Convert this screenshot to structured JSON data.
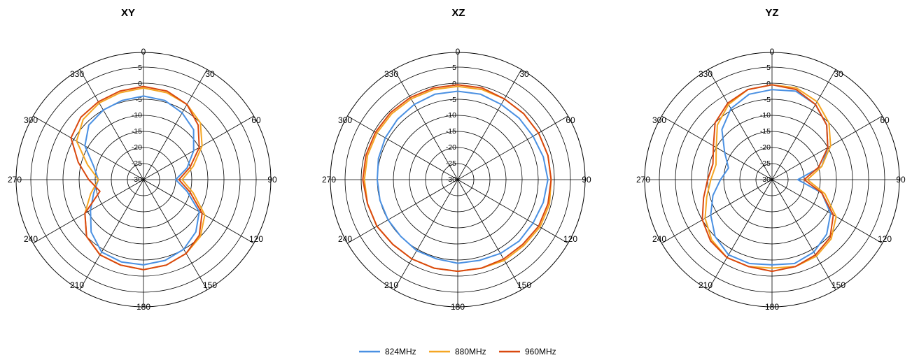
{
  "colors": {
    "s824": "#4a90e2",
    "s880": "#f5a623",
    "s960": "#d9480f",
    "grid": "#000000"
  },
  "chart_data": [
    {
      "type": "polar-line",
      "title": "XY",
      "angle_ticks": [
        "0",
        "30",
        "60",
        "90",
        "120",
        "150",
        "180",
        "210",
        "240",
        "270",
        "300",
        "330"
      ],
      "radial_ticks": [
        "5",
        "0",
        "-5",
        "-10",
        "-15",
        "-20",
        "-25",
        "-30"
      ],
      "rlim": [
        -30,
        5
      ],
      "theta_deg": [
        0,
        15,
        30,
        45,
        60,
        75,
        90,
        105,
        120,
        135,
        150,
        165,
        180,
        195,
        210,
        225,
        240,
        255,
        270,
        285,
        300,
        315,
        330,
        345
      ],
      "series": [
        {
          "name": "824MHz",
          "values": [
            -4,
            -4.5,
            -6,
            -8,
            -12,
            -16,
            -20,
            -16,
            -10,
            -7,
            -5,
            -4,
            -3.5,
            -3.5,
            -4,
            -7,
            -11,
            -14,
            -16,
            -14,
            -9,
            -6,
            -5,
            -4.5
          ]
        },
        {
          "name": "880MHz",
          "values": [
            -1.5,
            -2,
            -3,
            -5,
            -9,
            -14,
            -18,
            -14,
            -8,
            -5,
            -3.5,
            -2.5,
            -2,
            -2.5,
            -3,
            -5,
            -9,
            -13,
            -16,
            -12,
            -6,
            -3.5,
            -2.5,
            -2
          ]
        },
        {
          "name": "960MHz",
          "values": [
            -1,
            -1.5,
            -3,
            -6,
            -10,
            -15,
            -19,
            -15,
            -9,
            -5.5,
            -3.5,
            -2.5,
            -2,
            -2.5,
            -3,
            -5,
            -9,
            -16,
            -13,
            -9,
            -4,
            -2.5,
            -2,
            -1.5
          ]
        }
      ]
    },
    {
      "type": "polar-line",
      "title": "XZ",
      "angle_ticks": [
        "0",
        "30",
        "60",
        "90",
        "120",
        "150",
        "180",
        "210",
        "240",
        "270",
        "300",
        "330"
      ],
      "radial_ticks": [
        "5",
        "0",
        "-5",
        "-10",
        "-15",
        "-20",
        "-25",
        "-30"
      ],
      "rlim": [
        -30,
        5
      ],
      "theta_deg": [
        0,
        15,
        30,
        45,
        60,
        75,
        90,
        105,
        120,
        135,
        150,
        165,
        180,
        195,
        210,
        225,
        240,
        255,
        270,
        285,
        300,
        315,
        330,
        345
      ],
      "series": [
        {
          "name": "824MHz",
          "values": [
            -2.5,
            -2.5,
            -3,
            -3,
            -3,
            -2.5,
            -2,
            -2.5,
            -3,
            -3,
            -3.5,
            -4,
            -4,
            -4.5,
            -4.5,
            -5,
            -5,
            -5,
            -5,
            -4.5,
            -4,
            -3.5,
            -3,
            -2.5
          ]
        },
        {
          "name": "880MHz",
          "values": [
            -1,
            -1,
            -1,
            -1,
            -1,
            -1,
            -1,
            -0.5,
            -0.5,
            -1,
            -1,
            -1.5,
            -1.5,
            -1.5,
            -1.5,
            -1.5,
            -1,
            -1,
            -1,
            -1,
            -1,
            -1,
            -1,
            -1
          ]
        },
        {
          "name": "960MHz",
          "values": [
            -0.5,
            -0.5,
            -1,
            -1,
            -1,
            -1,
            -1,
            -1,
            -1,
            -1.5,
            -1.5,
            -1.5,
            -1.5,
            -1.5,
            -1.5,
            -1.5,
            -1,
            -1,
            -0.5,
            -0.5,
            -0.5,
            -0.5,
            -0.5,
            -0.5
          ]
        }
      ]
    },
    {
      "type": "polar-line",
      "title": "YZ",
      "angle_ticks": [
        "0",
        "30",
        "60",
        "90",
        "120",
        "150",
        "180",
        "210",
        "240",
        "270",
        "300",
        "330"
      ],
      "radial_ticks": [
        "5",
        "0",
        "-5",
        "-10",
        "-15",
        "-20",
        "-25",
        "-30"
      ],
      "rlim": [
        -30,
        5
      ],
      "theta_deg": [
        0,
        15,
        30,
        45,
        60,
        75,
        90,
        105,
        120,
        135,
        150,
        165,
        180,
        195,
        210,
        225,
        240,
        255,
        270,
        285,
        300,
        315,
        330,
        345
      ],
      "series": [
        {
          "name": "824MHz",
          "values": [
            -2,
            -1.5,
            -3,
            -6,
            -10,
            -14,
            -22,
            -14,
            -9,
            -6,
            -4,
            -3,
            -3.5,
            -3,
            -3,
            -5,
            -8,
            -11,
            -14,
            -16,
            -13,
            -8,
            -4.5,
            -2.5
          ]
        },
        {
          "name": "880MHz",
          "values": [
            -0.5,
            -0.5,
            -2,
            -5,
            -9,
            -14,
            -19,
            -13,
            -7,
            -4,
            -2.5,
            -2,
            -2.5,
            -2,
            -2,
            -3.5,
            -6,
            -9,
            -11,
            -12,
            -10,
            -6,
            -3,
            -1
          ]
        },
        {
          "name": "960MHz",
          "values": [
            -0.5,
            -1,
            -3,
            -6,
            -10,
            -15,
            -20,
            -14,
            -8,
            -4.5,
            -3,
            -2,
            -1.5,
            -2,
            -2,
            -3,
            -5,
            -8,
            -10,
            -11,
            -9,
            -5,
            -2.5,
            -1
          ]
        }
      ]
    }
  ]
}
